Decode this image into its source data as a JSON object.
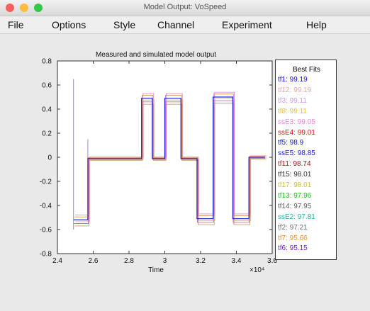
{
  "window": {
    "title": "Model Output: VoSpeed",
    "colors": {
      "close": "#fc605c",
      "minimize": "#fdbc40",
      "maximize": "#34c84a"
    }
  },
  "menu": [
    {
      "label": "File"
    },
    {
      "label": "Options"
    },
    {
      "label": "Style"
    },
    {
      "label": "Channel"
    },
    {
      "label": "Experiment"
    },
    {
      "label": "Help"
    }
  ],
  "chart_data": {
    "type": "line",
    "title": "Measured and simulated model output",
    "xlabel": "Time",
    "x_exponent_label": "×10⁴",
    "xlim": [
      2.4,
      3.6
    ],
    "ylim": [
      -0.8,
      0.8
    ],
    "x_ticks": [
      "2.4",
      "2.6",
      "2.8",
      "3",
      "3.2",
      "3.4",
      "3.6"
    ],
    "y_ticks": [
      "0.8",
      "0.6",
      "0.4",
      "0.2",
      "0",
      "-0.2",
      "-0.4",
      "-0.6",
      "-0.8"
    ],
    "grid": false,
    "legend_position": "right",
    "measured": {
      "color": "#1f1fd0",
      "segments": [
        {
          "x": [
            2.49,
            2.57
          ],
          "y": -0.52
        },
        {
          "x": [
            2.57,
            2.87
          ],
          "y": -0.01
        },
        {
          "x": [
            2.87,
            2.93
          ],
          "y": 0.49
        },
        {
          "x": [
            2.93,
            3.0
          ],
          "y": -0.01
        },
        {
          "x": [
            3.0,
            3.09
          ],
          "y": 0.49
        },
        {
          "x": [
            3.09,
            3.18
          ],
          "y": -0.01
        },
        {
          "x": [
            3.18,
            3.27
          ],
          "y": -0.51
        },
        {
          "x": [
            3.27,
            3.38
          ],
          "y": 0.5
        },
        {
          "x": [
            3.38,
            3.47
          ],
          "y": -0.51
        },
        {
          "x": [
            3.47,
            3.56
          ],
          "y": 0.0
        }
      ]
    },
    "simulated_colors": [
      "#d0308a",
      "#d66d2a",
      "#9d8a2a",
      "#cc6fd8",
      "#e58f8f"
    ],
    "legend": {
      "title": "Best Fits",
      "entries": [
        {
          "label": "tf1: 99.19",
          "color": "#1010e0"
        },
        {
          "label": "tf12: 99.19",
          "color": "#e8a8b0"
        },
        {
          "label": "tf3: 99.11",
          "color": "#c8a0e0"
        },
        {
          "label": "tf8: 99.11",
          "color": "#f0c030"
        },
        {
          "label": "ssE3: 99.05",
          "color": "#e88ae0"
        },
        {
          "label": "ssE4: 99.01",
          "color": "#e01010"
        },
        {
          "label": "tf5: 98.9",
          "color": "#1010d0"
        },
        {
          "label": "ssE5: 98.85",
          "color": "#1a1ad8"
        },
        {
          "label": "tf11: 98.74",
          "color": "#a01818"
        },
        {
          "label": "tf15: 98.01",
          "color": "#303030"
        },
        {
          "label": "tf17: 98.01",
          "color": "#c8c040"
        },
        {
          "label": "tf13: 97.96",
          "color": "#20c020"
        },
        {
          "label": "tf14: 97.95",
          "color": "#606060"
        },
        {
          "label": "ssE2: 97.81",
          "color": "#20b0b0"
        },
        {
          "label": "tf2: 97.21",
          "color": "#707070"
        },
        {
          "label": "tf7: 95.66",
          "color": "#f09030"
        },
        {
          "label": "tf6: 95.15",
          "color": "#7020d0"
        }
      ]
    }
  }
}
